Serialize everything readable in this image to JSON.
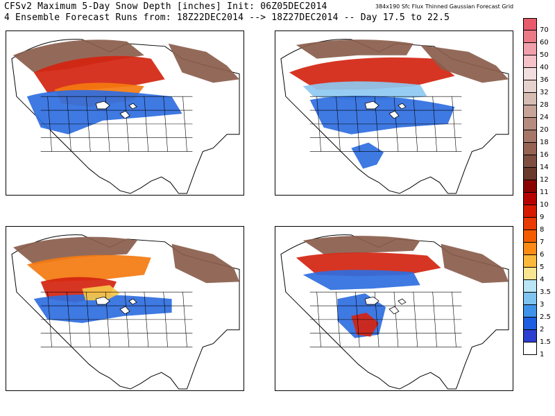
{
  "header": {
    "line1": "CFSv2 Maximum 5-Day Snow Depth [inches] Init: 06Z05DEC2014",
    "line2": "4 Ensemble Forecast Runs from: 18Z22DEC2014 --> 18Z27DEC2014 -- Day 17.5 to 22.5",
    "grid_note": "384x190 Sfc Flux Thinned Gaussian Forecast Grid"
  },
  "panels": [
    "run-1",
    "run-2",
    "run-3",
    "run-4"
  ],
  "colorbar": [
    {
      "label": "70",
      "color": "#e75b6b"
    },
    {
      "label": "60",
      "color": "#eb7a87"
    },
    {
      "label": "50",
      "color": "#f0a0aa"
    },
    {
      "label": "40",
      "color": "#f5c2c8"
    },
    {
      "label": "36",
      "color": "#f2dede"
    },
    {
      "label": "32",
      "color": "#e6d2cd"
    },
    {
      "label": "28",
      "color": "#d6bdb3"
    },
    {
      "label": "24",
      "color": "#c6a498"
    },
    {
      "label": "20",
      "color": "#b58c7f"
    },
    {
      "label": "18",
      "color": "#a67768"
    },
    {
      "label": "16",
      "color": "#946352"
    },
    {
      "label": "14",
      "color": "#7e4f40"
    },
    {
      "label": "12",
      "color": "#6a3a2c"
    },
    {
      "label": "11",
      "color": "#8b0000"
    },
    {
      "label": "10",
      "color": "#b60000"
    },
    {
      "label": "9",
      "color": "#d61a00"
    },
    {
      "label": "8",
      "color": "#e93a00"
    },
    {
      "label": "7",
      "color": "#f45c00"
    },
    {
      "label": "6",
      "color": "#fb8a16"
    },
    {
      "label": "5",
      "color": "#fbb93c"
    },
    {
      "label": "4",
      "color": "#f8e592"
    },
    {
      "label": "3.5",
      "color": "#b9e5f5"
    },
    {
      "label": "3",
      "color": "#7ec4ef"
    },
    {
      "label": "2.5",
      "color": "#3f93e9"
    },
    {
      "label": "2",
      "color": "#1d5fe0"
    },
    {
      "label": "1.5",
      "color": "#2c3fcf"
    },
    {
      "label": "1",
      "color": "#ffffff"
    }
  ],
  "colors": {
    "brown": "#8a5d4c",
    "red": "#d42410",
    "orange": "#f47a10",
    "yellow": "#f7c84a",
    "blue": "#2f6ee0",
    "lightblue": "#8ec9f1"
  }
}
